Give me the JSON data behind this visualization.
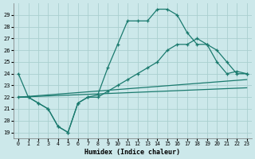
{
  "xlabel": "Humidex (Indice chaleur)",
  "bg_color": "#cce8ea",
  "grid_color": "#aacfcf",
  "line_color": "#1a7a6e",
  "xlim": [
    -0.5,
    23.5
  ],
  "ylim": [
    18.5,
    30.0
  ],
  "yticks": [
    19,
    20,
    21,
    22,
    23,
    24,
    25,
    26,
    27,
    28,
    29
  ],
  "xticks": [
    0,
    1,
    2,
    3,
    4,
    5,
    6,
    7,
    8,
    9,
    10,
    11,
    12,
    13,
    14,
    15,
    16,
    17,
    18,
    19,
    20,
    21,
    22,
    23
  ],
  "series": [
    {
      "x": [
        0,
        1,
        2,
        3,
        4,
        5,
        6,
        7,
        8,
        9,
        10,
        11,
        12,
        13,
        14,
        15,
        16,
        17,
        18,
        19,
        20,
        21,
        22,
        23
      ],
      "y": [
        24,
        22,
        21.5,
        21,
        19.5,
        19,
        21.5,
        22,
        22.2,
        24.5,
        26.5,
        28.5,
        28.5,
        28.5,
        29.5,
        29.5,
        29.0,
        27.5,
        26.5,
        26.5,
        25.0,
        24.0,
        24.2,
        24
      ],
      "marker": true
    },
    {
      "x": [
        0,
        1,
        2,
        3,
        4,
        5,
        6,
        7,
        8,
        9,
        10,
        11,
        12,
        13,
        14,
        15,
        16,
        17,
        18,
        19,
        20,
        21,
        22,
        23
      ],
      "y": [
        22,
        22,
        21.5,
        21,
        19.5,
        19,
        21.5,
        22,
        22,
        22.5,
        23.0,
        23.5,
        24.0,
        24.5,
        25.0,
        26.0,
        26.5,
        26.5,
        27.0,
        26.5,
        26.0,
        25.0,
        24.0,
        24
      ],
      "marker": true
    },
    {
      "x": [
        0,
        23
      ],
      "y": [
        22,
        23.5
      ],
      "marker": false
    },
    {
      "x": [
        0,
        23
      ],
      "y": [
        22,
        22.8
      ],
      "marker": false
    }
  ]
}
